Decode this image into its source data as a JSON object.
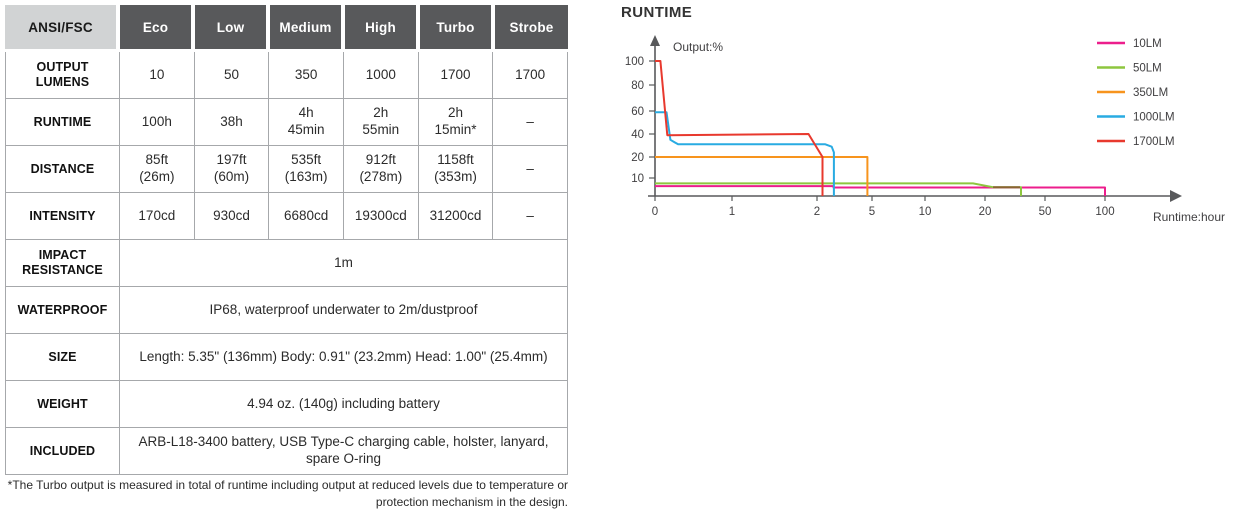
{
  "table": {
    "header": {
      "label": "ANSI/FSC",
      "modes": [
        "Eco",
        "Low",
        "Medium",
        "High",
        "Turbo",
        "Strobe"
      ]
    },
    "rows": [
      {
        "label": "OUTPUT LUMENS",
        "cells": [
          "10",
          "50",
          "350",
          "1000",
          "1700",
          "1700"
        ]
      },
      {
        "label": "RUNTIME",
        "cells": [
          "100h",
          "38h",
          "4h\n45min",
          "2h\n55min",
          "2h\n15min*",
          "–"
        ]
      },
      {
        "label": "DISTANCE",
        "cells": [
          "85ft\n(26m)",
          "197ft\n(60m)",
          "535ft\n(163m)",
          "912ft\n(278m)",
          "1158ft\n(353m)",
          "–"
        ]
      },
      {
        "label": "INTENSITY",
        "cells": [
          "170cd",
          "930cd",
          "6680cd",
          "19300cd",
          "31200cd",
          "–"
        ]
      }
    ],
    "span_rows": [
      {
        "label": "IMPACT RESISTANCE",
        "value": "1m"
      },
      {
        "label": "WATERPROOF",
        "value": "IP68, waterproof underwater to 2m/dustproof"
      },
      {
        "label": "SIZE",
        "value": "Length: 5.35\" (136mm) Body: 0.91\" (23.2mm) Head: 1.00\" (25.4mm)"
      },
      {
        "label": "WEIGHT",
        "value": "4.94 oz. (140g) including battery"
      },
      {
        "label": "INCLUDED",
        "value": "ARB-L18-3400 battery, USB Type-C charging cable, holster, lanyard, spare O-ring"
      }
    ],
    "footnote": "*The Turbo output is measured in total of runtime including output at reduced levels due to temperature or protection mechanism in the design.",
    "colors": {
      "header_dark": "#58595b",
      "header_light": "#d1d3d4",
      "border": "#a6a8ab"
    }
  },
  "chart_data": {
    "type": "line",
    "title": "RUNTIME",
    "ylabel": "Output:%",
    "xlabel": "Runtime:hour",
    "x_scale": "segmented",
    "x_ticks": [
      0,
      1,
      2,
      5,
      10,
      20,
      50,
      100
    ],
    "y_ticks": [
      10,
      20,
      40,
      60,
      80,
      100
    ],
    "ylim": [
      0,
      100
    ],
    "grid": false,
    "legend_position": "right",
    "axis_color": "#58595b",
    "text_color": "#414042",
    "series": [
      {
        "name": "10LM",
        "color": "#ec1e8c",
        "points": [
          [
            0,
            5.5
          ],
          [
            2.9,
            5.5
          ],
          [
            2.9,
            4.7
          ],
          [
            100,
            4.7
          ],
          [
            100,
            0
          ]
        ]
      },
      {
        "name": "50LM",
        "color": "#8dc63f",
        "points": [
          [
            0,
            7
          ],
          [
            18,
            7
          ],
          [
            24,
            4.9
          ],
          [
            38,
            4.9
          ],
          [
            38,
            0
          ]
        ]
      },
      {
        "name": "350LM",
        "color": "#f7941d",
        "points": [
          [
            0,
            20
          ],
          [
            4.75,
            20
          ],
          [
            4.75,
            0
          ]
        ]
      },
      {
        "name": "1000LM",
        "color": "#29abe2",
        "points": [
          [
            0,
            59
          ],
          [
            0.15,
            59
          ],
          [
            0.2,
            35
          ],
          [
            0.25,
            33
          ],
          [
            0.3,
            31
          ],
          [
            2.45,
            31
          ],
          [
            2.8,
            29
          ],
          [
            2.92,
            24
          ],
          [
            2.92,
            0
          ]
        ]
      },
      {
        "name": "1700LM",
        "color": "#e8392e",
        "points": [
          [
            0,
            100
          ],
          [
            0.07,
            100
          ],
          [
            0.16,
            39
          ],
          [
            1.9,
            40
          ],
          [
            2.3,
            20
          ],
          [
            2.3,
            0
          ]
        ]
      }
    ],
    "overlap_segment": {
      "color": "#8a6334",
      "points": [
        [
          24,
          4.9
        ],
        [
          37.5,
          4.9
        ]
      ],
      "note": "50LM and 10LM traces overlap here and print as brown"
    }
  }
}
